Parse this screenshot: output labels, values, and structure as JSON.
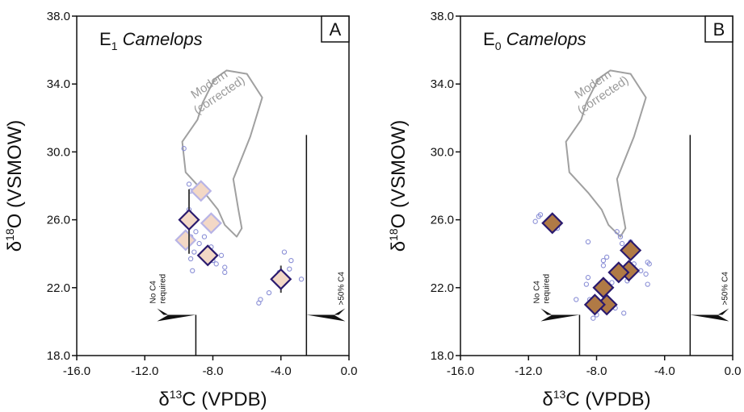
{
  "chart_data": [
    {
      "type": "scatter",
      "panel_label": "A",
      "specimen_sub": "1",
      "xlabel_sup": "13",
      "ylabel_sup": "18",
      "xlabel": {
        "pre": "δ",
        "sup": "13",
        "post": "C (VPDB)"
      },
      "ylabel": {
        "pre": "δ",
        "sup": "18",
        "post": "O (VSMOW)"
      },
      "xlim": [
        -16.0,
        0.0
      ],
      "ylim": [
        18.0,
        38.0
      ],
      "x_ticks": [
        "-16.0",
        "-12.0",
        "-8.0",
        "-4.0",
        "0.0"
      ],
      "y_ticks": [
        "18.0",
        "22.0",
        "26.0",
        "30.0",
        "34.0",
        "38.0"
      ],
      "species_label": {
        "prefix": "E",
        "sub": "1",
        "name": "Camelops"
      },
      "grid": false,
      "region_label": [
        "Modern",
        "(corrected)"
      ],
      "region_outline": [
        [
          -8.9,
          31.9
        ],
        [
          -9.8,
          30.6
        ],
        [
          -9.6,
          28.8
        ],
        [
          -8.5,
          27.6
        ],
        [
          -7.7,
          26.6
        ],
        [
          -7.3,
          25.7
        ],
        [
          -6.6,
          25.0
        ],
        [
          -6.3,
          25.5
        ],
        [
          -6.5,
          26.6
        ],
        [
          -6.8,
          28.4
        ],
        [
          -5.8,
          30.9
        ],
        [
          -5.1,
          33.2
        ],
        [
          -6.0,
          34.6
        ],
        [
          -7.2,
          34.8
        ],
        [
          -7.9,
          34.3
        ],
        [
          -8.6,
          32.9
        ]
      ],
      "threshold_lines": [
        {
          "x": -9.0,
          "y_top": 20.4,
          "label": [
            "No C4",
            "required"
          ]
        },
        {
          "x": -2.5,
          "y_top": 31.0,
          "label": [
            ">50% C4"
          ]
        }
      ],
      "series": [
        {
          "style": "means-dark",
          "points": [
            {
              "x": -9.4,
              "y": 26.0,
              "yerr": [
                24.0,
                27.8
              ]
            },
            {
              "x": -8.3,
              "y": 23.9,
              "yerr": null
            },
            {
              "x": -4.0,
              "y": 22.5,
              "yerr": [
                21.7,
                23.3
              ]
            }
          ]
        },
        {
          "style": "means-light",
          "points": [
            {
              "x": -8.7,
              "y": 27.7
            },
            {
              "x": -8.1,
              "y": 25.8
            },
            {
              "x": -9.6,
              "y": 24.8
            }
          ]
        },
        {
          "style": "individual",
          "points": [
            {
              "x": -9.7,
              "y": 30.2
            },
            {
              "x": -9.4,
              "y": 28.1
            },
            {
              "x": -9.3,
              "y": 27.7
            },
            {
              "x": -9.4,
              "y": 26.6
            },
            {
              "x": -9.2,
              "y": 26.0
            },
            {
              "x": -9.0,
              "y": 25.3
            },
            {
              "x": -9.3,
              "y": 25.0
            },
            {
              "x": -8.8,
              "y": 24.6
            },
            {
              "x": -8.5,
              "y": 25.0
            },
            {
              "x": -8.4,
              "y": 24.2
            },
            {
              "x": -9.3,
              "y": 23.7
            },
            {
              "x": -9.1,
              "y": 24.1
            },
            {
              "x": -8.1,
              "y": 24.4
            },
            {
              "x": -8.0,
              "y": 23.6
            },
            {
              "x": -7.8,
              "y": 23.4
            },
            {
              "x": -7.3,
              "y": 23.2
            },
            {
              "x": -7.5,
              "y": 23.9
            },
            {
              "x": -7.3,
              "y": 22.9
            },
            {
              "x": -9.2,
              "y": 23.0
            },
            {
              "x": -5.3,
              "y": 21.1
            },
            {
              "x": -5.2,
              "y": 21.3
            },
            {
              "x": -4.7,
              "y": 21.7
            },
            {
              "x": -3.8,
              "y": 24.1
            },
            {
              "x": -3.5,
              "y": 23.1
            },
            {
              "x": -3.4,
              "y": 23.6
            },
            {
              "x": -2.8,
              "y": 22.5
            },
            {
              "x": -4.1,
              "y": 22.9
            }
          ]
        }
      ]
    },
    {
      "type": "scatter",
      "panel_label": "B",
      "specimen_sub": "0",
      "xlabel_sup": "13",
      "ylabel_sup": "18",
      "xlabel": {
        "pre": "δ",
        "sup": "13",
        "post": "C (VPDB)"
      },
      "ylabel": {
        "pre": "δ",
        "sup": "18",
        "post": "O (VSMOW)"
      },
      "xlim": [
        -16.0,
        0.0
      ],
      "ylim": [
        18.0,
        38.0
      ],
      "x_ticks": [
        "-16.0",
        "-12.0",
        "-8.0",
        "-4.0",
        "0.0"
      ],
      "y_ticks": [
        "18.0",
        "22.0",
        "26.0",
        "30.0",
        "34.0",
        "38.0"
      ],
      "species_label": {
        "prefix": "E",
        "sub": "0",
        "name": "Camelops"
      },
      "grid": false,
      "region_label": [
        "Modern",
        "(corrected)"
      ],
      "region_outline": [
        [
          -8.9,
          31.9
        ],
        [
          -9.8,
          30.6
        ],
        [
          -9.6,
          28.8
        ],
        [
          -8.5,
          27.6
        ],
        [
          -7.7,
          26.6
        ],
        [
          -7.3,
          25.7
        ],
        [
          -6.6,
          25.0
        ],
        [
          -6.3,
          25.5
        ],
        [
          -6.5,
          26.6
        ],
        [
          -6.8,
          28.4
        ],
        [
          -5.8,
          30.9
        ],
        [
          -5.1,
          33.2
        ],
        [
          -6.0,
          34.6
        ],
        [
          -7.2,
          34.8
        ],
        [
          -7.9,
          34.3
        ],
        [
          -8.6,
          32.9
        ]
      ],
      "threshold_lines": [
        {
          "x": -9.0,
          "y_top": 20.4,
          "label": [
            "No C4",
            "required"
          ]
        },
        {
          "x": -2.5,
          "y_top": 31.0,
          "label": [
            ">50% C4"
          ]
        }
      ],
      "series": [
        {
          "style": "means-brown",
          "points": [
            {
              "x": -10.6,
              "y": 25.8
            },
            {
              "x": -6.0,
              "y": 24.2
            },
            {
              "x": -6.1,
              "y": 23.0
            },
            {
              "x": -6.7,
              "y": 22.9
            },
            {
              "x": -7.6,
              "y": 22.0
            },
            {
              "x": -7.4,
              "y": 21.0
            },
            {
              "x": -8.1,
              "y": 21.0
            }
          ]
        },
        {
          "style": "individual",
          "points": [
            {
              "x": -11.4,
              "y": 26.2
            },
            {
              "x": -11.6,
              "y": 25.9
            },
            {
              "x": -11.3,
              "y": 26.3
            },
            {
              "x": -10.3,
              "y": 25.5
            },
            {
              "x": -8.5,
              "y": 24.7
            },
            {
              "x": -8.5,
              "y": 22.6
            },
            {
              "x": -8.6,
              "y": 22.2
            },
            {
              "x": -8.4,
              "y": 21.3
            },
            {
              "x": -7.6,
              "y": 23.3
            },
            {
              "x": -7.4,
              "y": 23.8
            },
            {
              "x": -7.6,
              "y": 23.6
            },
            {
              "x": -7.1,
              "y": 22.3
            },
            {
              "x": -7.0,
              "y": 22.8
            },
            {
              "x": -6.8,
              "y": 25.3
            },
            {
              "x": -6.6,
              "y": 25.0
            },
            {
              "x": -6.5,
              "y": 24.6
            },
            {
              "x": -6.3,
              "y": 24.3
            },
            {
              "x": -6.0,
              "y": 24.7
            },
            {
              "x": -5.8,
              "y": 23.4
            },
            {
              "x": -6.2,
              "y": 22.4
            },
            {
              "x": -5.4,
              "y": 23.0
            },
            {
              "x": -5.0,
              "y": 23.5
            },
            {
              "x": -4.9,
              "y": 23.4
            },
            {
              "x": -5.1,
              "y": 22.8
            },
            {
              "x": -5.0,
              "y": 22.2
            },
            {
              "x": -7.8,
              "y": 21.8
            },
            {
              "x": -8.2,
              "y": 20.2
            },
            {
              "x": -8.0,
              "y": 20.4
            },
            {
              "x": -7.5,
              "y": 21.7
            },
            {
              "x": -6.9,
              "y": 20.8
            },
            {
              "x": -6.4,
              "y": 20.5
            },
            {
              "x": -9.2,
              "y": 21.3
            }
          ]
        }
      ]
    }
  ],
  "colors": {
    "axis": "#111111",
    "outline": "#a0a0a0",
    "individual": "#8a8fd6",
    "dark_stroke": "#2a1a6e",
    "light_stroke": "#b8b4e6",
    "fill_peach": "#f3d8c6",
    "fill_brown": "#b07a45",
    "error_bar": "#444444"
  }
}
